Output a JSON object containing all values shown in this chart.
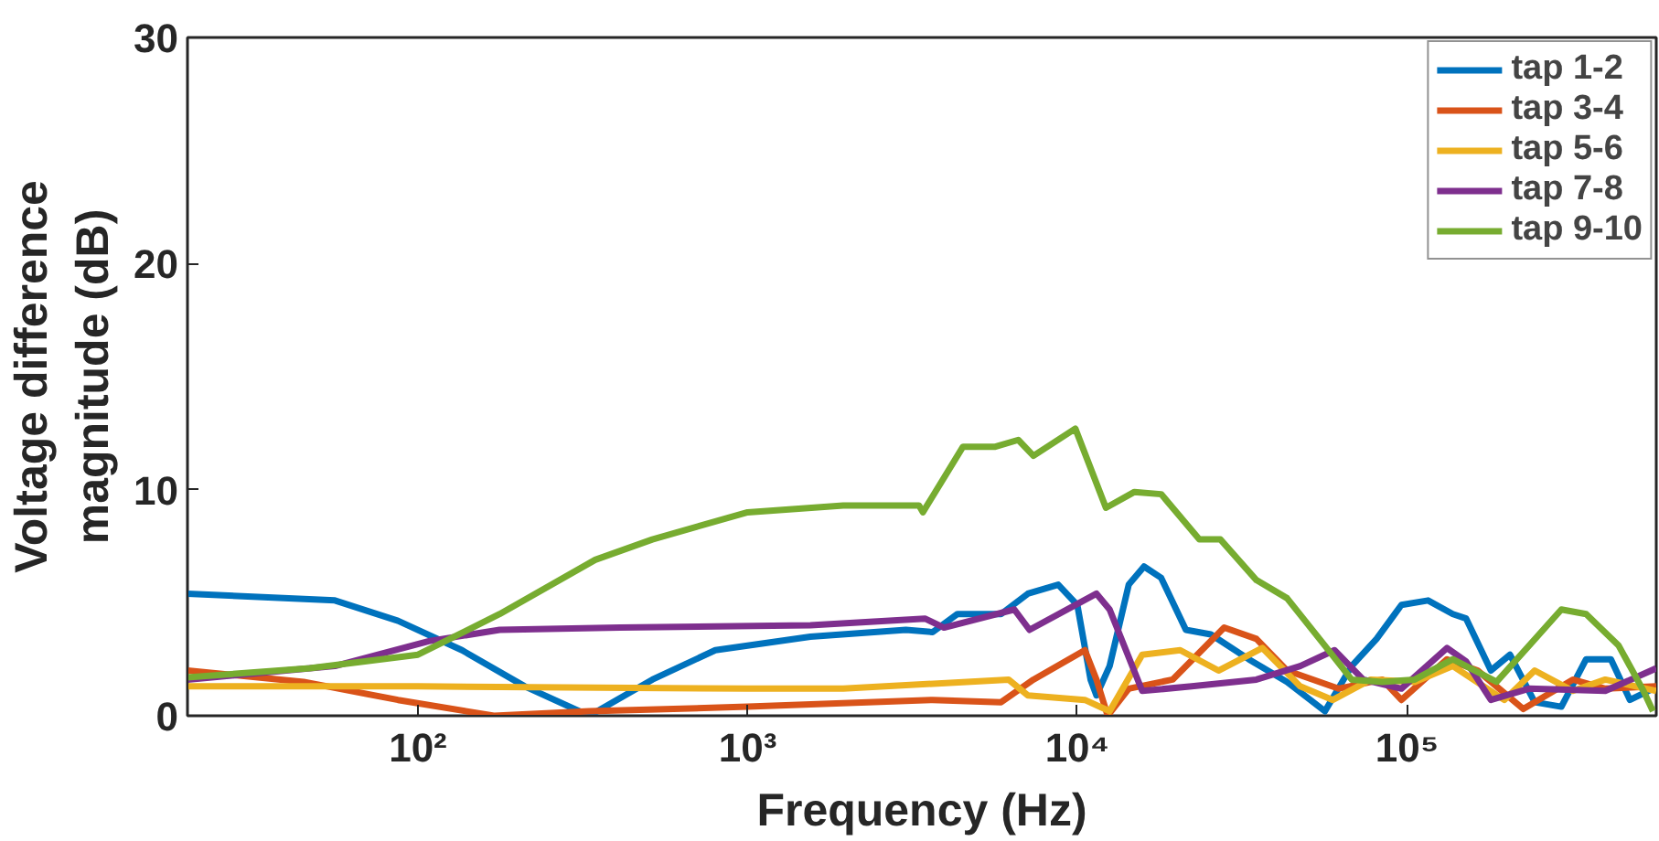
{
  "chart_data": {
    "type": "line",
    "xlabel": "Frequency (Hz)",
    "ylabel": "Voltage difference\nmagnitude (dB)",
    "log": "x",
    "xlim": [
      20,
      570000
    ],
    "ylim": [
      0,
      30
    ],
    "xticks": [
      {
        "value": 100,
        "label": "10²"
      },
      {
        "value": 1000,
        "label": "10³"
      },
      {
        "value": 10000,
        "label": "10⁴"
      },
      {
        "value": 100000,
        "label": "10⁵"
      }
    ],
    "yticks": [
      0,
      10,
      20,
      30
    ],
    "grid": false,
    "legend": "top right",
    "marker": "none",
    "line_style": "solid",
    "series": [
      {
        "name": "tap 1-2",
        "color": "#0072bd",
        "x": [
          20,
          56,
          87,
          136,
          211,
          331,
          514,
          798,
          1550,
          3020,
          3640,
          4330,
          5870,
          7080,
          8750,
          10000,
          10970,
          11430,
          12530,
          14320,
          15930,
          17960,
          21340,
          25400,
          33110,
          43250,
          56360,
          67920,
          80840,
          96160,
          115800,
          137700,
          151100,
          179600,
          205200,
          243900,
          293800,
          349300,
          415300,
          474300,
          557000
        ],
        "values": [
          5.4,
          5.1,
          4.2,
          2.9,
          1.3,
          0,
          1.6,
          2.9,
          3.5,
          3.8,
          3.7,
          4.5,
          4.5,
          5.4,
          5.8,
          4.9,
          1.6,
          0.9,
          2.2,
          5.8,
          6.6,
          6.1,
          3.8,
          3.6,
          2.5,
          1.5,
          0.2,
          2.2,
          3.4,
          4.9,
          5.1,
          4.5,
          4.3,
          2.0,
          2.7,
          0.6,
          0.4,
          2.5,
          2.5,
          0.7,
          1.2
        ]
      },
      {
        "name": "tap 3-4",
        "color": "#d95319",
        "x": [
          20,
          45,
          87,
          170,
          331,
          1000,
          3640,
          5870,
          7360,
          10540,
          11430,
          12360,
          14320,
          19450,
          27880,
          34920,
          43250,
          61940,
          84140,
          96160,
          132200,
          163700,
          225300,
          318400,
          399300,
          570000
        ],
        "values": [
          2.0,
          1.5,
          0.7,
          0,
          0.2,
          0.4,
          0.7,
          0.6,
          1.6,
          2.9,
          1.6,
          0,
          1.2,
          1.6,
          3.9,
          3.4,
          2.0,
          1.2,
          1.6,
          0.7,
          2.5,
          2.0,
          0.3,
          1.6,
          1.2,
          1.3
        ]
      },
      {
        "name": "tap 5-6",
        "color": "#edb120",
        "x": [
          20,
          100,
          1000,
          1950,
          6190,
          7080,
          10540,
          12530,
          15730,
          20510,
          26800,
          36390,
          47420,
          59540,
          77620,
          105500,
          137700,
          197200,
          243900,
          318400,
          399300,
          570000
        ],
        "values": [
          1.3,
          1.3,
          1.2,
          1.2,
          1.6,
          0.9,
          0.7,
          0.2,
          2.7,
          2.9,
          2.0,
          3.0,
          1.3,
          0.7,
          1.6,
          1.5,
          2.2,
          0.7,
          2.0,
          1.1,
          1.6,
          1.1
        ]
      },
      {
        "name": "tap 7-8",
        "color": "#7e2f8e",
        "x": [
          20,
          56,
          108,
          177,
          410,
          1550,
          3450,
          3940,
          6440,
          7160,
          11430,
          12530,
          15730,
          22230,
          34920,
          47420,
          60260,
          73620,
          96160,
          132200,
          151100,
          179600,
          234400,
          399300,
          570000
        ],
        "values": [
          1.6,
          2.2,
          3.3,
          3.8,
          3.9,
          4.0,
          4.3,
          3.9,
          4.7,
          3.8,
          5.4,
          4.7,
          1.1,
          1.3,
          1.6,
          2.2,
          2.9,
          1.6,
          1.2,
          3.0,
          2.4,
          0.7,
          1.2,
          1.1,
          2.1
        ]
      },
      {
        "name": "tap 9-10",
        "color": "#77ac30",
        "x": [
          20,
          47,
          100,
          177,
          345,
          514,
          1000,
          1950,
          3310,
          3400,
          4500,
          5640,
          6620,
          7360,
          9860,
          12210,
          14900,
          17960,
          23440,
          27160,
          34920,
          43250,
          56360,
          67920,
          84140,
          105500,
          137700,
          186900,
          234400,
          293800,
          349300,
          438500,
          521200,
          557000
        ],
        "values": [
          1.7,
          2.1,
          2.7,
          4.5,
          6.9,
          7.8,
          9.0,
          9.3,
          9.3,
          9.0,
          11.9,
          11.9,
          12.2,
          11.5,
          12.7,
          9.2,
          9.9,
          9.8,
          7.8,
          7.8,
          6.0,
          5.2,
          3.1,
          1.6,
          1.5,
          1.6,
          2.5,
          1.5,
          3.1,
          4.7,
          4.5,
          3.1,
          1.1,
          0.2
        ]
      }
    ]
  }
}
